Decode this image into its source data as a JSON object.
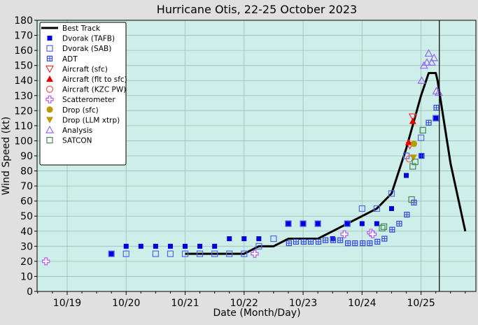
{
  "chart_data": {
    "type": "scatter",
    "title": "Hurricane Otis, 22-25 October 2023",
    "xlabel": "Date (Month/Day)",
    "ylabel": "Wind Speed (kt)",
    "x_units": "days after 10/19 00Z",
    "xlim": [
      -0.51,
      6.93
    ],
    "ylim": [
      0,
      180
    ],
    "xticks": [
      {
        "x": 0,
        "label": "10/19"
      },
      {
        "x": 1,
        "label": "10/20"
      },
      {
        "x": 2,
        "label": "10/21"
      },
      {
        "x": 3,
        "label": "10/22"
      },
      {
        "x": 4,
        "label": "10/23"
      },
      {
        "x": 5,
        "label": "10/24"
      },
      {
        "x": 6,
        "label": "10/25"
      }
    ],
    "yticks": [
      0,
      10,
      20,
      30,
      40,
      50,
      60,
      70,
      80,
      90,
      100,
      110,
      120,
      130,
      140,
      150,
      160,
      170,
      180
    ],
    "grid": true,
    "legend_position": "top-left",
    "landfall_line_x": 6.31,
    "best_track": {
      "name": "Best Track",
      "x": [
        2,
        2.25,
        2.5,
        2.75,
        3,
        3.25,
        3.5,
        3.75,
        4,
        4.25,
        4.5,
        4.75,
        5,
        5.25,
        5.5,
        5.75,
        6,
        6.13,
        6.25,
        6.28,
        6.5,
        6.75
      ],
      "y": [
        25,
        25,
        25,
        25,
        25,
        30,
        30,
        35,
        35,
        35,
        40,
        45,
        50,
        55,
        65,
        95,
        130,
        145,
        145,
        140,
        85,
        40
      ]
    },
    "series": [
      {
        "name": "Dvorak (TAFB)",
        "marker": "filled-square",
        "color": "#0000dd",
        "x": [
          0.75,
          1,
          1.25,
          1.5,
          1.75,
          2,
          2.25,
          2.5,
          2.75,
          3,
          3.25,
          3.75,
          4,
          4.25,
          4.5,
          4.75,
          5,
          5.25,
          5.5,
          5.75,
          6,
          6.25
        ],
        "y": [
          25,
          30,
          30,
          30,
          30,
          30,
          30,
          30,
          35,
          35,
          35,
          45,
          45,
          45,
          35,
          45,
          45,
          45,
          55,
          77,
          90,
          115
        ]
      },
      {
        "name": "Dvorak (SAB)",
        "marker": "open-square",
        "color": "#5566ee",
        "x": [
          0.75,
          1,
          1.5,
          1.75,
          2,
          2.25,
          2.5,
          2.75,
          3,
          3.25,
          3.5,
          3.75,
          4,
          4.25,
          4.75,
          5,
          5.25,
          5.5,
          5.75,
          6,
          6.25
        ],
        "y": [
          25,
          25,
          25,
          25,
          25,
          25,
          25,
          25,
          25,
          30,
          35,
          45,
          45,
          45,
          45,
          55,
          55,
          65,
          90,
          102,
          115
        ]
      },
      {
        "name": "ADT",
        "marker": "grid-square",
        "color": "#3344dd",
        "x": [
          3.76,
          3.88,
          4.01,
          4.13,
          4.26,
          4.38,
          4.51,
          4.63,
          4.76,
          4.88,
          5.01,
          5.13,
          5.26,
          5.38,
          5.51,
          5.63,
          5.76,
          5.88,
          6.01,
          6.13,
          6.26
        ],
        "y": [
          32,
          33,
          33,
          33,
          33,
          34,
          34,
          34,
          32,
          32,
          32,
          32,
          33,
          35,
          41,
          45,
          51,
          59,
          90,
          112,
          122
        ]
      },
      {
        "name": "Aircraft (sfc)",
        "marker": "open-down-triangle",
        "color": "#ee3333",
        "x": [
          5.86,
          5.81
        ],
        "y": [
          116,
          97
        ]
      },
      {
        "name": "Aircraft (flt to sfc)",
        "marker": "filled-up-triangle",
        "color": "#ee0000",
        "x": [
          5.86,
          5.79
        ],
        "y": [
          113,
          99
        ]
      },
      {
        "name": "Aircraft (KZC PW)",
        "marker": "open-circle",
        "color": "#ee5555",
        "x": [
          5.8
        ],
        "y": [
          88
        ]
      },
      {
        "name": "Scatterometer",
        "marker": "open-plus",
        "color": "#bb55ee",
        "x": [
          -0.36,
          3.18,
          4.7,
          5.15,
          5.18
        ],
        "y": [
          20,
          25,
          38,
          39,
          38
        ]
      },
      {
        "name": "Drop (sfc)",
        "marker": "filled-circle",
        "color": "#bb9900",
        "x": [
          5.88
        ],
        "y": [
          98
        ]
      },
      {
        "name": "Drop (LLM xtrp)",
        "marker": "filled-down-triangle",
        "color": "#bb9900",
        "x": [
          5.87
        ],
        "y": [
          89
        ]
      },
      {
        "name": "Analysis",
        "marker": "open-up-triangle",
        "color": "#9966ee",
        "x": [
          6.01,
          6.05,
          6.1,
          6.13,
          6.18,
          6.22,
          6.26,
          6.3
        ],
        "y": [
          140,
          150,
          152,
          158,
          152,
          155,
          133,
          132
        ]
      },
      {
        "name": "SATCON",
        "marker": "open-square",
        "color": "#448855",
        "x": [
          5.34,
          5.37,
          5.84,
          5.9,
          5.86,
          6.03
        ],
        "y": [
          42,
          43,
          61,
          86,
          83,
          107
        ]
      }
    ]
  }
}
